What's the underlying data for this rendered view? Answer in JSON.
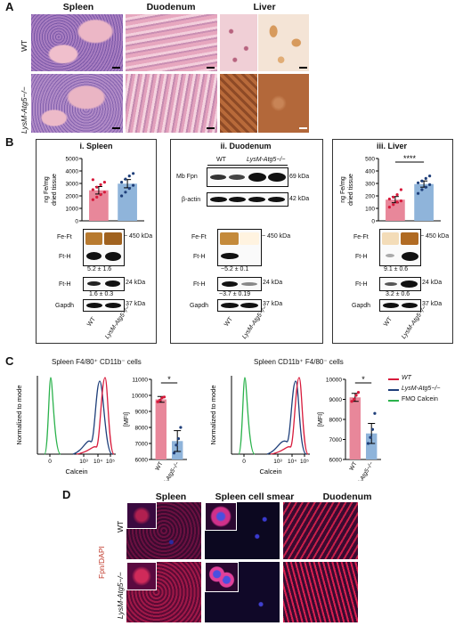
{
  "panelA": {
    "letter": "A",
    "headers": [
      "Spleen",
      "Duodenum",
      "Liver"
    ],
    "rows": [
      "WT",
      "LysM-Atg5−/−"
    ]
  },
  "panelB": {
    "letter": "B",
    "spleen": {
      "title": "i. Spleen",
      "ylabel": [
        "ng Fe/mg",
        "dried tissue"
      ],
      "blot1": {
        "label1": "Fe-Ft",
        "label2": "Ft-H",
        "kda": "~ 450 kDa",
        "ratio": "5.2 ± 1.6"
      },
      "blot2": {
        "label1": "Ft-H",
        "label2": "Gapdh",
        "kda1": "24 kDa",
        "kda2": "37 kDa",
        "ratio": "1.6 ± 0.3"
      }
    },
    "duodenum": {
      "title": "ii. Duodenum",
      "col_wt": "WT",
      "col_ko": "LysM-Atg5−/−",
      "mb": {
        "label1": "Mb Fpn",
        "label2": "β-actin",
        "kda1": "69 kDa",
        "kda2": "42 kDa"
      },
      "blot1": {
        "label1": "Fe-Ft",
        "label2": "Ft-H",
        "kda": "~ 450 kDa",
        "ratio": "~5.2 ± 0.1"
      },
      "blot2": {
        "label1": "Ft-H",
        "label2": "Gapdh",
        "kda1": "24 kDa",
        "kda2": "37 kDa",
        "ratio": "~3.7 ± 0.19"
      }
    },
    "liver": {
      "title": "iii. Liver",
      "ylabel": [
        "ng Fe/mg",
        "dried tissue"
      ],
      "sig": "****",
      "blot1": {
        "label1": "Fe-Ft",
        "label2": "Ft-H",
        "kda": "~ 450 kDa",
        "ratio": "9.1 ± 0.6"
      },
      "blot2": {
        "label1": "Ft-H",
        "label2": "Gapdh",
        "kda1": "24 kDa",
        "kda2": "37 kDa",
        "ratio": "3.2 ± 0.6"
      }
    },
    "xticks": [
      "WT",
      "LysM-Atg5−/−"
    ]
  },
  "panelC": {
    "letter": "C",
    "title1": "Spleen F4/80⁺ CD11b⁻ cells",
    "title2": "Spleen CD11b⁺ F4/80⁻ cells",
    "hist_ylabel": "Normalized to mode",
    "hist_xlabel": "Calcein",
    "mfi_label": "[MFI]",
    "sig": "*",
    "legend": [
      {
        "name": "WT",
        "color": "#d81b3c"
      },
      {
        "name": "LysM-Atg5−/−",
        "color": "#1f3f7a"
      },
      {
        "name": "FMO Calcein",
        "color": "#2bb24c"
      }
    ]
  },
  "panelD": {
    "letter": "D",
    "headers": [
      "Spleen",
      "Spleen cell smear",
      "Duodenum"
    ],
    "rows": [
      "WT",
      "LysM-Atg5−/−"
    ],
    "side": "Fpn/DAPI"
  },
  "chart_data": [
    {
      "type": "bar",
      "panel": "B-i Spleen",
      "ylabel": "ng Fe/mg dried tissue",
      "categories": [
        "WT",
        "LysM-Atg5−/−"
      ],
      "values": [
        2450,
        2980
      ],
      "errors": [
        300,
        330
      ],
      "points": [
        [
          1700,
          1900,
          2100,
          2300,
          2500,
          2700,
          2900,
          3100,
          3300
        ],
        [
          2000,
          2300,
          2600,
          2850,
          3100,
          3350,
          3600,
          3800
        ]
      ],
      "ylim": [
        0,
        5000
      ],
      "yticks": [
        0,
        1000,
        2000,
        3000,
        4000,
        5000
      ],
      "colors": [
        "#e8879a",
        "#8fb4da"
      ]
    },
    {
      "type": "bar",
      "panel": "B-iii Liver",
      "ylabel": "ng Fe/mg dried tissue",
      "categories": [
        "WT",
        "LysM-Atg5−/−"
      ],
      "values": [
        170,
        295
      ],
      "errors": [
        25,
        25
      ],
      "points": [
        [
          110,
          130,
          150,
          160,
          175,
          190,
          210,
          250
        ],
        [
          220,
          250,
          270,
          290,
          305,
          320,
          340,
          360
        ]
      ],
      "ylim": [
        0,
        500
      ],
      "yticks": [
        0,
        100,
        200,
        300,
        400,
        500
      ],
      "colors": [
        "#e8879a",
        "#8fb4da"
      ]
    },
    {
      "type": "bar",
      "panel": "C Spleen F4/80+ CD11b- MFI",
      "ylabel": "[MFI]",
      "categories": [
        "WT",
        "LysM-Atg5−/−"
      ],
      "values": [
        9750,
        7150
      ],
      "errors": [
        180,
        650
      ],
      "points": [
        [
          9600,
          9700,
          9850,
          9900
        ],
        [
          6400,
          6900,
          7300,
          8000
        ]
      ],
      "ylim": [
        6000,
        11000
      ],
      "yticks": [
        6000,
        7000,
        8000,
        9000,
        10000,
        11000
      ],
      "colors": [
        "#e8879a",
        "#8fb4da"
      ]
    },
    {
      "type": "bar",
      "panel": "C Spleen CD11b+ F4/80- MFI",
      "ylabel": "[MFI]",
      "categories": [
        "WT",
        "LysM-Atg5−/−"
      ],
      "values": [
        9100,
        7300
      ],
      "errors": [
        200,
        500
      ],
      "points": [
        [
          8900,
          9000,
          9200,
          9350
        ],
        [
          6800,
          7100,
          7500,
          8300
        ]
      ],
      "ylim": [
        6000,
        10000
      ],
      "yticks": [
        6000,
        7000,
        8000,
        9000,
        10000
      ],
      "colors": [
        "#e8879a",
        "#8fb4da"
      ]
    },
    {
      "type": "line",
      "panel": "C histograms",
      "xlabel": "Calcein",
      "ylabel": "Normalized to mode",
      "xticks": [
        "0",
        "10³",
        "10⁴",
        "10⁵"
      ]
    }
  ]
}
